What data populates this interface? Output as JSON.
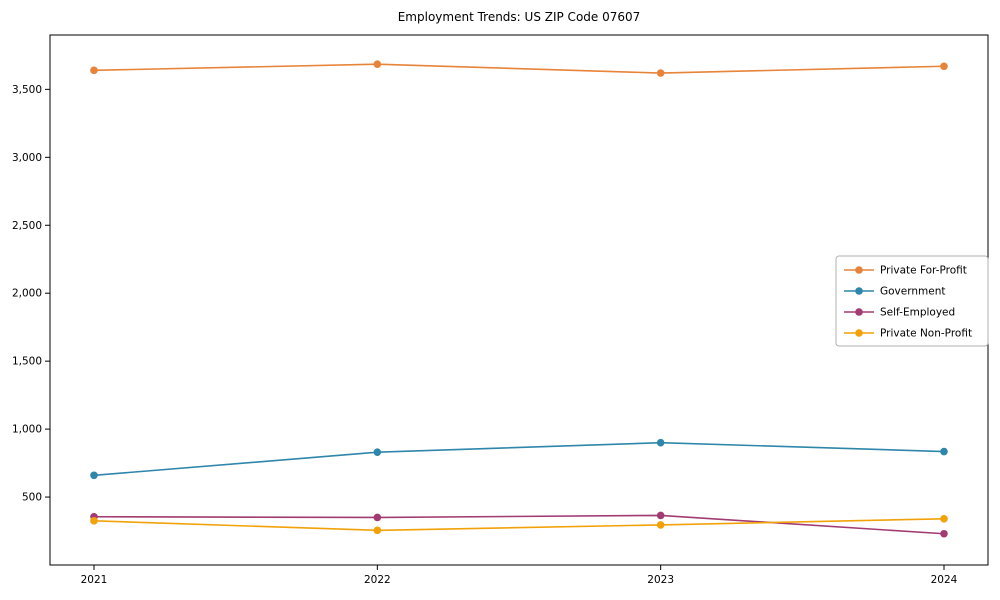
{
  "chart": {
    "title": "Employment Trends: US ZIP Code 07607"
  },
  "chart_data": {
    "type": "line",
    "title": "Employment Trends: US ZIP Code 07607",
    "xlabel": "",
    "ylabel": "",
    "x": [
      "2021",
      "2022",
      "2023",
      "2024"
    ],
    "series": [
      {
        "name": "Private For-Profit",
        "color": "#E8833A",
        "values": [
          3640,
          3685,
          3620,
          3670
        ]
      },
      {
        "name": "Government",
        "color": "#2E86AB",
        "values": [
          660,
          830,
          900,
          835
        ]
      },
      {
        "name": "Self-Employed",
        "color": "#A23B72",
        "values": [
          355,
          350,
          365,
          230
        ]
      },
      {
        "name": "Private Non-Profit",
        "color": "#F1A208",
        "values": [
          325,
          255,
          295,
          340
        ]
      }
    ],
    "ylim": [
      0,
      3900
    ],
    "ytick_values": [
      500,
      1000,
      1500,
      2000,
      2500,
      3000,
      3500
    ],
    "ytick_labels": [
      "500",
      "1,000",
      "1,500",
      "2,000",
      "2,500",
      "3,000",
      "3,500"
    ],
    "grid": false,
    "legend_position": "center right",
    "axis_color": "#000000",
    "legend_border_color": "#b0b0b0"
  }
}
